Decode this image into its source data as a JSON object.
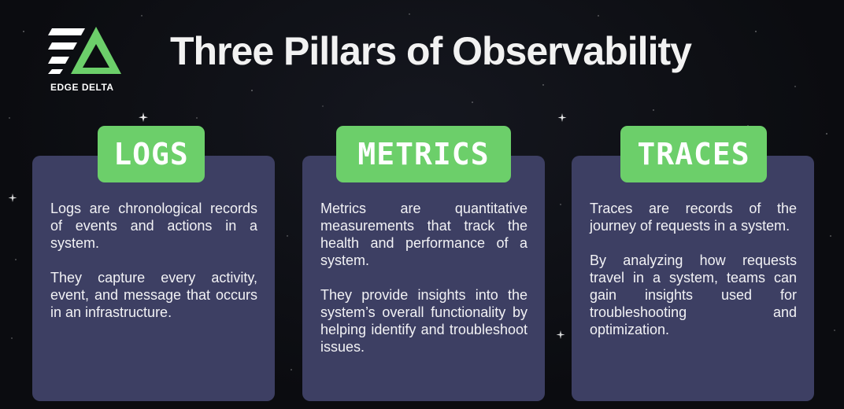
{
  "brand": {
    "name": "EDGE DELTA",
    "accent_color": "#6ccf6a",
    "icon": "edge-delta-logo-icon"
  },
  "title": "Three Pillars of Observability",
  "pillars": [
    {
      "label": "LOGS",
      "paragraphs": [
        "Logs are chronological records of events and actions in a system.",
        "They capture every activity, event, and message that occurs in an infrastructure."
      ]
    },
    {
      "label": "METRICS",
      "paragraphs": [
        "Metrics are quantitative measurements that track the health and performance of a system.",
        "They provide insights into the system’s overall functionality by helping identify and troubleshoot issues."
      ]
    },
    {
      "label": "TRACES",
      "paragraphs": [
        "Traces are records of the journey of requests in a system.",
        "By analyzing how requests travel in a system, teams can gain insights used for troubleshooting and optimization."
      ]
    }
  ],
  "colors": {
    "background": "#0b0c10",
    "card": "#3d3f63",
    "pill": "#6ccf6a",
    "text": "#f2f2f5"
  }
}
